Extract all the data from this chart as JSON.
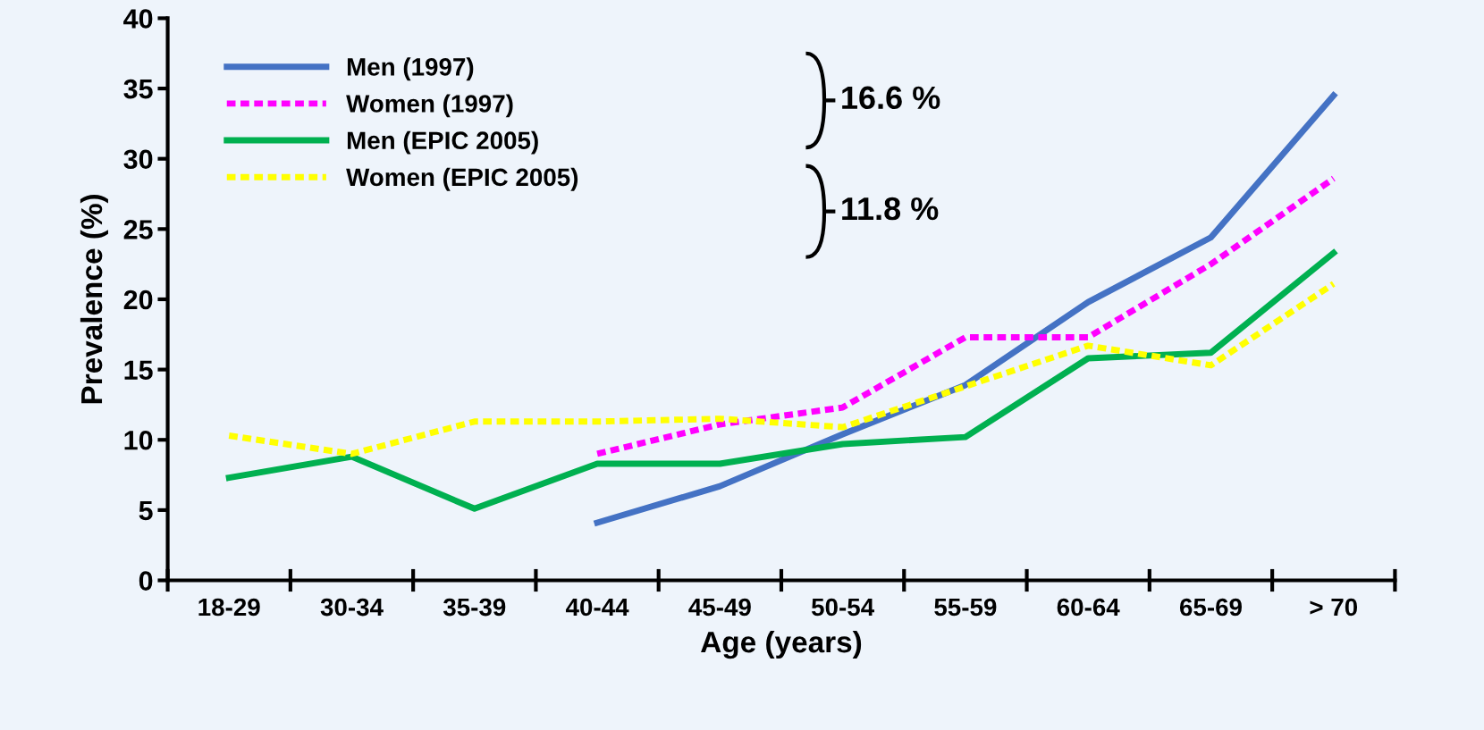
{
  "chart_data": {
    "type": "line",
    "xlabel": "Age (years)",
    "ylabel": "Prevalence (%)",
    "categories": [
      "18-29",
      "30-34",
      "35-39",
      "40-44",
      "45-49",
      "50-54",
      "55-59",
      "60-64",
      "65-69",
      "> 70"
    ],
    "ylim": [
      0,
      40
    ],
    "yticks": [
      0,
      5,
      10,
      15,
      20,
      25,
      30,
      35,
      40
    ],
    "grid": false,
    "legend": "top left",
    "marker": "none",
    "series": [
      {
        "name": "Men (1997)",
        "color": "#4472c4",
        "line_style": "solid",
        "values": [
          null,
          null,
          null,
          4.1,
          6.7,
          10.4,
          13.9,
          19.8,
          24.4,
          34.5
        ]
      },
      {
        "name": "Women (1997)",
        "color": "#ff00ff",
        "line_style": "dotted",
        "values": [
          null,
          null,
          null,
          9.0,
          11.1,
          12.3,
          17.3,
          17.3,
          22.5,
          28.6
        ]
      },
      {
        "name": "Men (EPIC 2005)",
        "color": "#00b050",
        "line_style": "solid",
        "values": [
          7.3,
          8.8,
          5.1,
          8.3,
          8.3,
          9.7,
          10.2,
          15.8,
          16.2,
          23.3
        ]
      },
      {
        "name": "Women (EPIC 2005)",
        "color": "#ffff00",
        "line_style": "dotted",
        "values": [
          10.3,
          9.0,
          11.3,
          11.3,
          11.5,
          10.9,
          13.8,
          16.7,
          15.3,
          21.1
        ]
      }
    ],
    "annotations": [
      "16.6 %",
      "11.8 %"
    ]
  }
}
